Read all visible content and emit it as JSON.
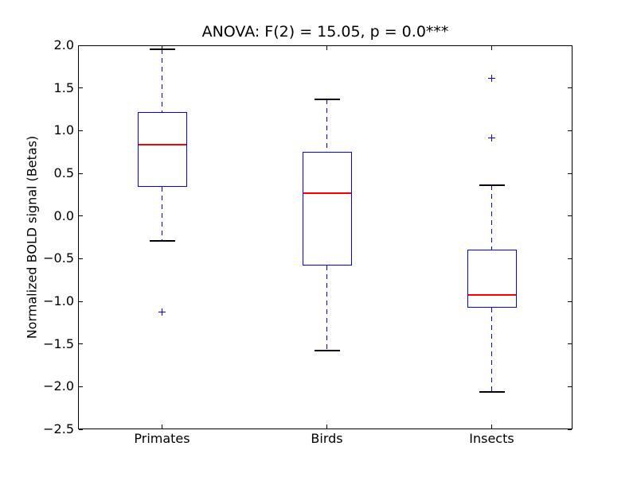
{
  "chart_data": {
    "type": "box",
    "title": "ANOVA: F(2) = 15.05, p = 0.0***",
    "ylabel": "Normalized BOLD signal (Betas)",
    "xlabel": "",
    "categories": [
      "Primates",
      "Birds",
      "Insects"
    ],
    "ylim": [
      -2.5,
      2.0
    ],
    "grid": "off",
    "legend": "none",
    "ytick_values": [
      2.0,
      1.5,
      1.0,
      0.5,
      0.0,
      -0.5,
      -1.0,
      -1.5,
      -2.0,
      -2.5
    ],
    "ytick_labels": [
      "2.0",
      "1.5",
      "1.0",
      "0.5",
      "0.0",
      "−0.5",
      "−1.0",
      "−1.5",
      "−2.0",
      "−2.5"
    ],
    "boxes": [
      {
        "category": "Primates",
        "whisker_high": 1.95,
        "q3": 1.22,
        "median": 0.84,
        "q1": 0.34,
        "whisker_low": -0.29,
        "outliers": [
          -1.13
        ]
      },
      {
        "category": "Birds",
        "whisker_high": 1.37,
        "q3": 0.75,
        "median": 0.27,
        "q1": -0.58,
        "whisker_low": -1.58,
        "outliers": []
      },
      {
        "category": "Insects",
        "whisker_high": 0.36,
        "q3": -0.39,
        "median": -0.93,
        "q1": -1.07,
        "whisker_low": -2.06,
        "outliers": [
          1.61,
          0.91
        ]
      }
    ],
    "colors": {
      "box": "#0000ff",
      "median": "#ff0000",
      "whisker": "#0000ff",
      "cap": "#000000",
      "outlier": "#0000ff",
      "frame": "#000000",
      "background": "#ffffff"
    }
  }
}
